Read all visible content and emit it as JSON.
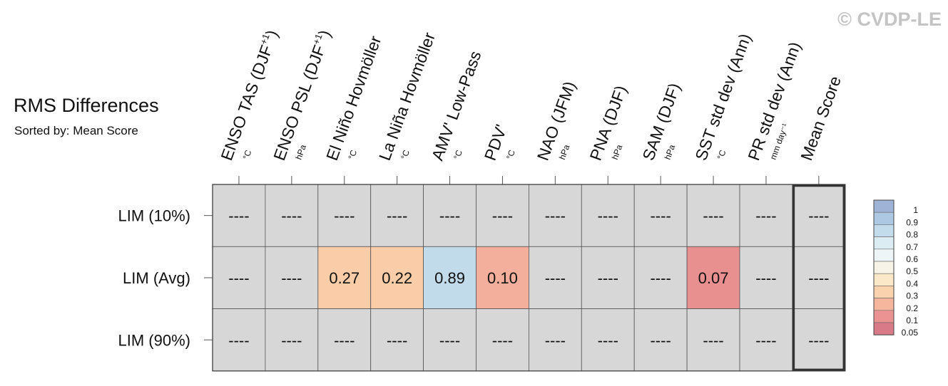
{
  "title": "RMS Differences",
  "subtitle": "Sorted by: Mean Score",
  "watermark": "© CVDP-LE",
  "missing_label": "----",
  "chart_data": {
    "type": "heatmap",
    "title": "RMS Differences",
    "subtitle": "Sorted by: Mean Score",
    "columns": [
      {
        "label": "ENSO TAS (DJF",
        "sup": "+1",
        "close": ")",
        "unit": "°C"
      },
      {
        "label": "ENSO PSL (DJF",
        "sup": "+1",
        "close": ")",
        "unit": "hPa"
      },
      {
        "label": "El Niño Hovmöller",
        "sup": "",
        "close": "",
        "unit": "°C"
      },
      {
        "label": "La Niña Hovmöller",
        "sup": "",
        "close": "",
        "unit": "°C"
      },
      {
        "label": "AMV' Low-Pass",
        "sup": "",
        "close": "",
        "unit": "°C"
      },
      {
        "label": "PDV'",
        "sup": "",
        "close": "",
        "unit": "°C"
      },
      {
        "label": "NAO (JFM)",
        "sup": "",
        "close": "",
        "unit": "hPa"
      },
      {
        "label": "PNA (DJF)",
        "sup": "",
        "close": "",
        "unit": "hPa"
      },
      {
        "label": "SAM (DJF)",
        "sup": "",
        "close": "",
        "unit": "hPa"
      },
      {
        "label": "SST std dev (Ann)",
        "sup": "",
        "close": "",
        "unit": "°C"
      },
      {
        "label": "PR std dev (Ann)",
        "sup": "",
        "close": "",
        "unit": "mm day⁻¹"
      },
      {
        "label": "Mean Score",
        "sup": "",
        "close": "",
        "unit": ""
      }
    ],
    "rows": [
      "LIM (10%)",
      "LIM (Avg)",
      "LIM (90%)"
    ],
    "values": [
      [
        null,
        null,
        null,
        null,
        null,
        null,
        null,
        null,
        null,
        null,
        null,
        null
      ],
      [
        null,
        null,
        0.27,
        0.22,
        0.89,
        0.1,
        null,
        null,
        null,
        0.07,
        null,
        null
      ],
      [
        null,
        null,
        null,
        null,
        null,
        null,
        null,
        null,
        null,
        null,
        null,
        null
      ]
    ],
    "value_labels": [
      [
        "----",
        "----",
        "----",
        "----",
        "----",
        "----",
        "----",
        "----",
        "----",
        "----",
        "----",
        "----"
      ],
      [
        "----",
        "----",
        "0.27",
        "0.22",
        "0.89",
        "0.10",
        "----",
        "----",
        "----",
        "0.07",
        "----",
        "----"
      ],
      [
        "----",
        "----",
        "----",
        "----",
        "----",
        "----",
        "----",
        "----",
        "----",
        "----",
        "----",
        "----"
      ]
    ],
    "missing_color": "#d7d7d7",
    "colorbar": {
      "labels": [
        "1",
        "0.9",
        "0.8",
        "0.7",
        "0.6",
        "0.5",
        "0.4",
        "0.3",
        "0.2",
        "0.1",
        "0.05"
      ],
      "colors": [
        "#9fb3d6",
        "#adc8e2",
        "#c3dcec",
        "#dcecf3",
        "#eef5f6",
        "#f7f3e6",
        "#fbe8c8",
        "#fbd2ae",
        "#f6b69d",
        "#eb9392",
        "#d97a88"
      ]
    },
    "cell_colors": {
      "0.27": "#fbcca8",
      "0.22": "#fbcca8",
      "0.89": "#c2dbeb",
      "0.10": "#f4ae9c",
      "0.07": "#e8908f"
    }
  }
}
